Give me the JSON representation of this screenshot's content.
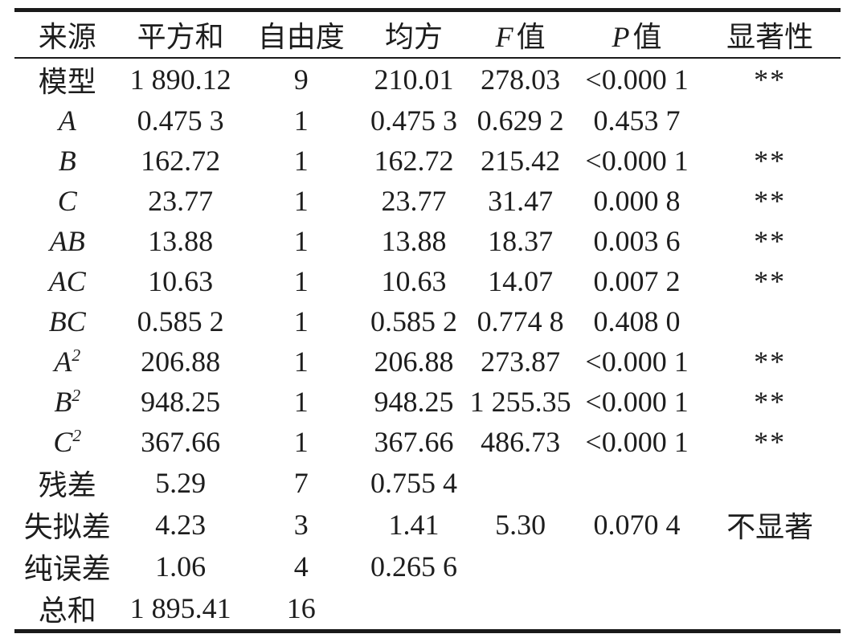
{
  "colors": {
    "background": "#ffffff",
    "text": "#1d1d1d",
    "rule": "#1a1a1a"
  },
  "table": {
    "headers": [
      {
        "key": "source",
        "text": "来源"
      },
      {
        "key": "sum-of-squares",
        "text": "平方和"
      },
      {
        "key": "df",
        "text": "自由度"
      },
      {
        "key": "mean-square",
        "text": "均方"
      },
      {
        "key": "f-value",
        "italic": "F",
        "text": "值"
      },
      {
        "key": "p-value",
        "italic": "P",
        "text": "值"
      },
      {
        "key": "significance",
        "text": "显著性"
      }
    ],
    "rows": [
      {
        "source": {
          "text": "模型"
        },
        "cells": [
          "1 890.12",
          "9",
          "210.01",
          "278.03",
          "<0.000 1",
          "**"
        ]
      },
      {
        "source": {
          "text": "A",
          "italic": true
        },
        "cells": [
          "0.475 3",
          "1",
          "0.475 3",
          "0.629 2",
          "0.453 7",
          ""
        ]
      },
      {
        "source": {
          "text": "B",
          "italic": true
        },
        "cells": [
          "162.72",
          "1",
          "162.72",
          "215.42",
          "<0.000 1",
          "**"
        ]
      },
      {
        "source": {
          "text": "C",
          "italic": true
        },
        "cells": [
          "23.77",
          "1",
          "23.77",
          "31.47",
          "0.000 8",
          "**"
        ]
      },
      {
        "source": {
          "text": "AB",
          "italic": true
        },
        "cells": [
          "13.88",
          "1",
          "13.88",
          "18.37",
          "0.003 6",
          "**"
        ]
      },
      {
        "source": {
          "text": "AC",
          "italic": true
        },
        "cells": [
          "10.63",
          "1",
          "10.63",
          "14.07",
          "0.007 2",
          "**"
        ]
      },
      {
        "source": {
          "text": "BC",
          "italic": true
        },
        "cells": [
          "0.585 2",
          "1",
          "0.585 2",
          "0.774 8",
          "0.408 0",
          ""
        ]
      },
      {
        "source": {
          "text": "A",
          "sup": "2",
          "italic": true
        },
        "cells": [
          "206.88",
          "1",
          "206.88",
          "273.87",
          "<0.000 1",
          "**"
        ]
      },
      {
        "source": {
          "text": "B",
          "sup": "2",
          "italic": true
        },
        "cells": [
          "948.25",
          "1",
          "948.25",
          "1 255.35",
          "<0.000 1",
          "**"
        ]
      },
      {
        "source": {
          "text": "C",
          "sup": "2",
          "italic": true
        },
        "cells": [
          "367.66",
          "1",
          "367.66",
          "486.73",
          "<0.000 1",
          "**"
        ]
      },
      {
        "source": {
          "text": "残差"
        },
        "cells": [
          "5.29",
          "7",
          "0.755 4",
          "",
          "",
          ""
        ]
      },
      {
        "source": {
          "text": "失拟差"
        },
        "cells": [
          "4.23",
          "3",
          "1.41",
          "5.30",
          "0.070 4",
          "不显著"
        ]
      },
      {
        "source": {
          "text": "纯误差"
        },
        "cells": [
          "1.06",
          "4",
          "0.265 6",
          "",
          "",
          ""
        ]
      },
      {
        "source": {
          "text": "总和"
        },
        "cells": [
          "1 895.41",
          "16",
          "",
          "",
          "",
          ""
        ]
      }
    ]
  }
}
